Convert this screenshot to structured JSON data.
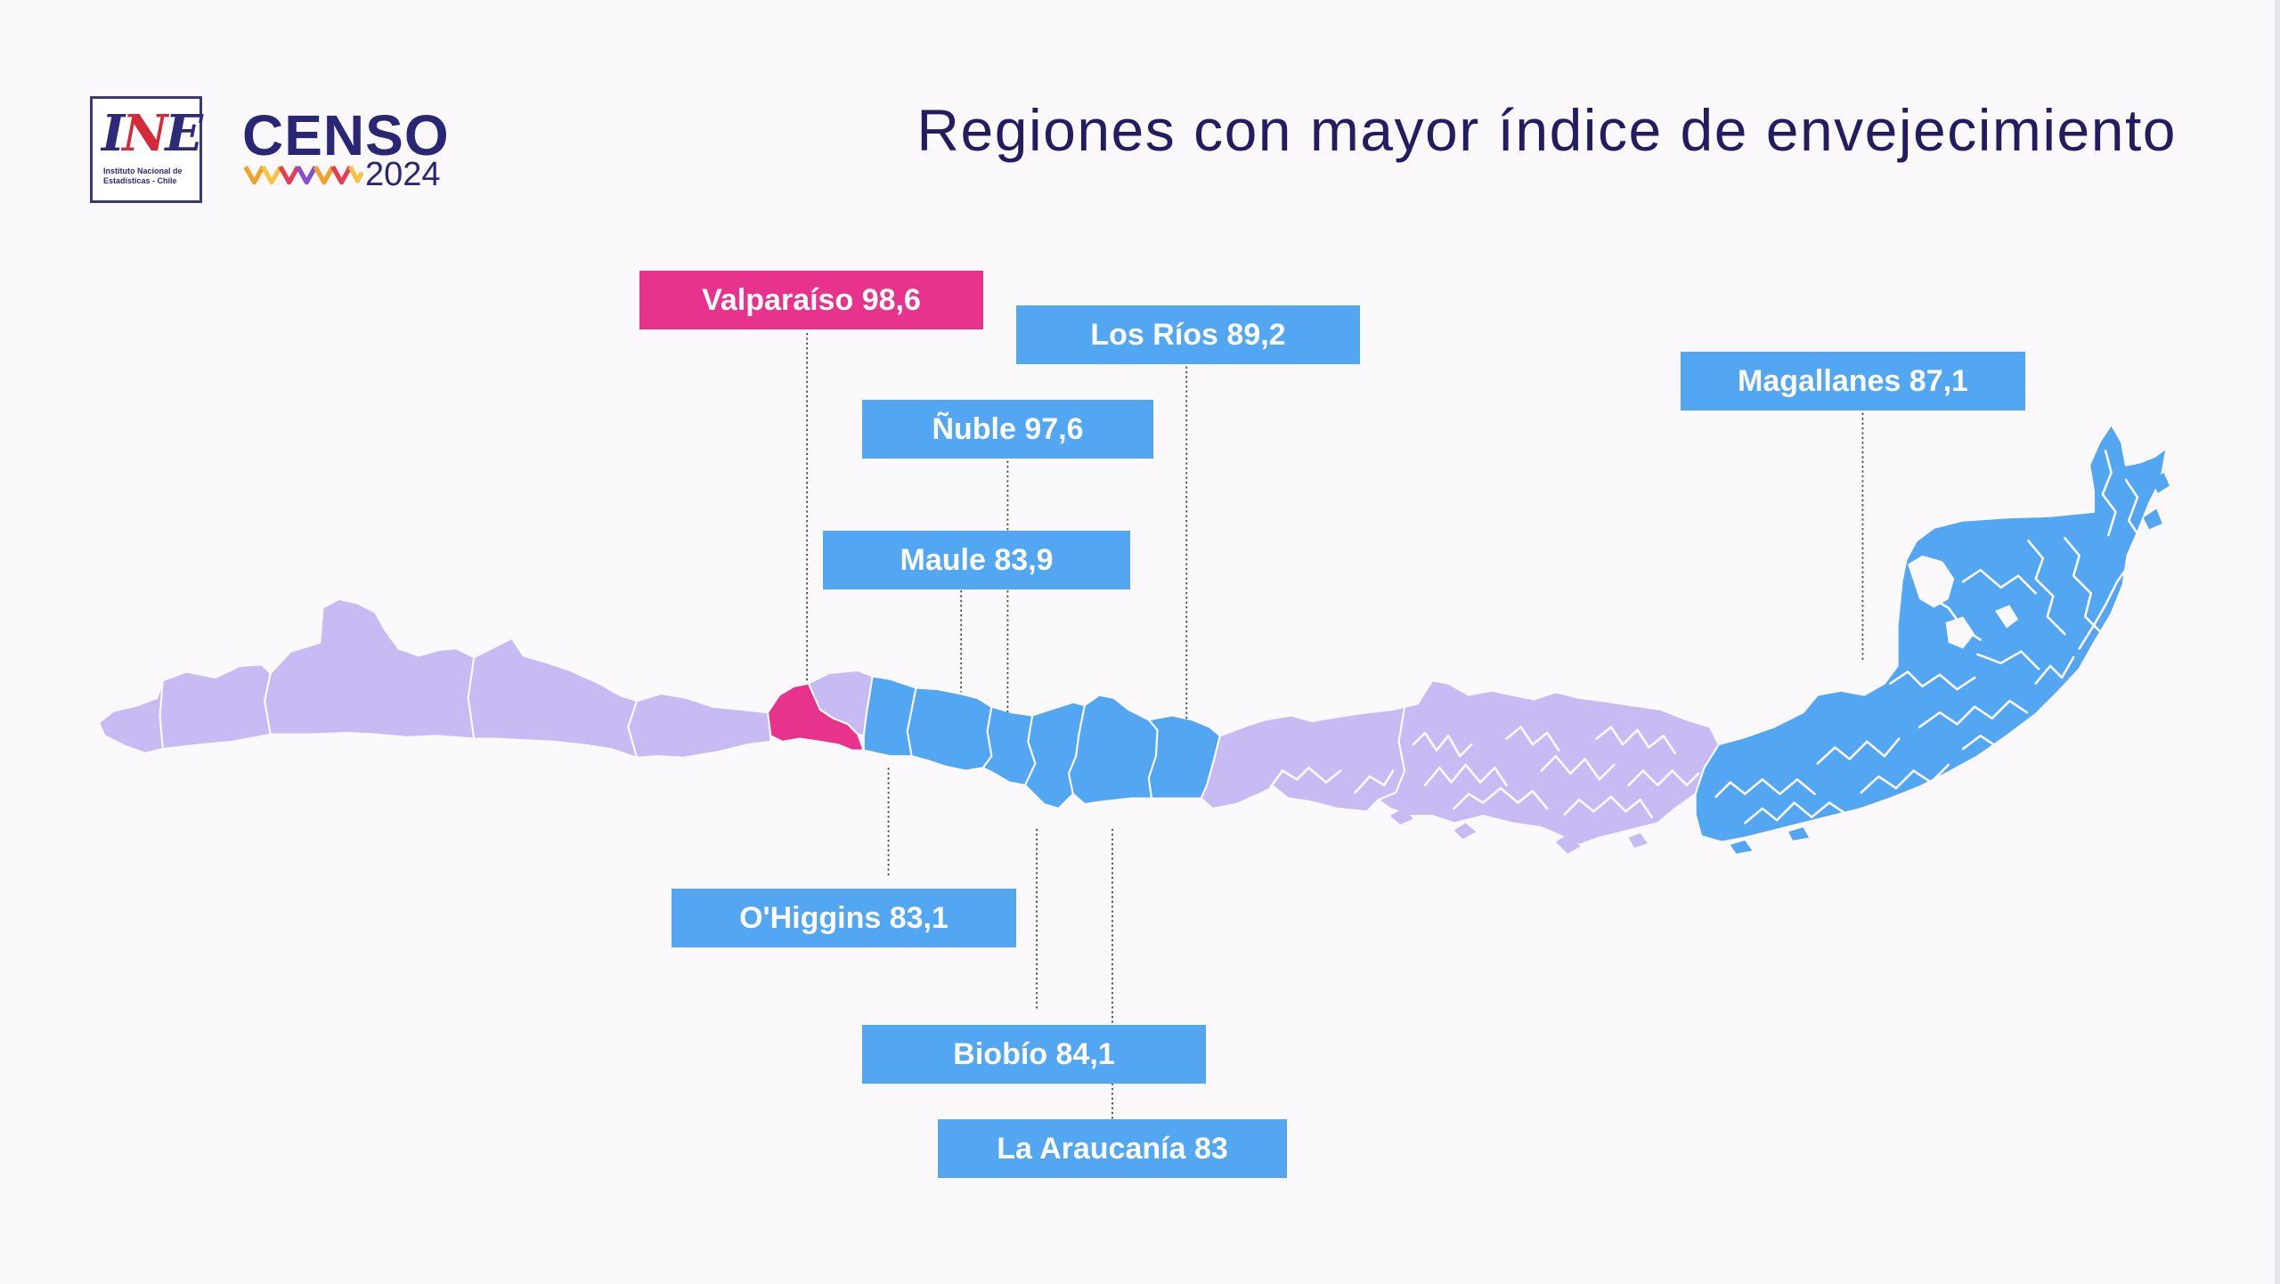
{
  "header": {
    "ine_logo": {
      "wordmark_letters": [
        "I",
        "N",
        "E"
      ],
      "tagline": "Instituto Nacional de Estadísticas - Chile"
    },
    "censo_logo": {
      "wordmark": "CENSO",
      "year": "2024"
    },
    "title": "Regiones con mayor índice de envejecimiento"
  },
  "map": {
    "labels": [
      {
        "region": "Valparaíso",
        "value": "98,6"
      },
      {
        "region": "Los Ríos",
        "value": "89,2"
      },
      {
        "region": "Ñuble",
        "value": "97,6"
      },
      {
        "region": "Magallanes",
        "value": "87,1"
      },
      {
        "region": "Maule",
        "value": "83,9"
      },
      {
        "region": "O'Higgins",
        "value": "83,1"
      },
      {
        "region": "Biobío",
        "value": "84,1"
      },
      {
        "region": "La Araucanía",
        "value": "83"
      }
    ]
  },
  "colors": {
    "background": "#fcf9fd",
    "title": "#231d5f",
    "highlight_region": "#e7338c",
    "labeled_region": "#52a6f2",
    "other_region": "#c8baf3",
    "leader_line": "#4a4a55",
    "censo_wave": [
      "#f0a12b",
      "#f6c443",
      "#e63d52",
      "#8a4fd0",
      "#f0a12b",
      "#e63d52",
      "#f6c443"
    ]
  }
}
